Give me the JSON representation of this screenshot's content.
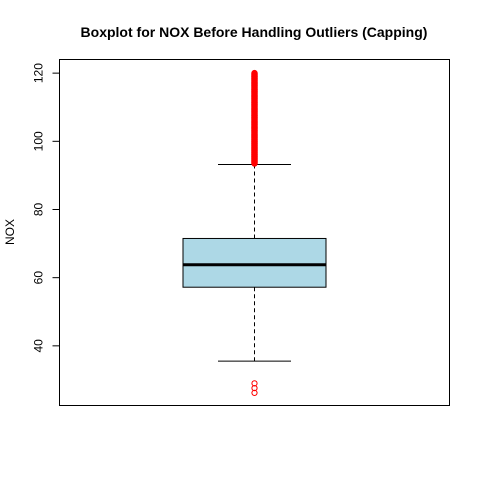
{
  "chart_data": {
    "type": "boxplot",
    "title": "Boxplot for NOX Before Handling Outliers (Capping)",
    "xlabel": "",
    "ylabel": "NOX",
    "ylim": [
      22.5,
      124
    ],
    "yticks": [
      40,
      60,
      80,
      100,
      120
    ],
    "grid": false,
    "legend": "none",
    "box": {
      "whisker_low": 35.5,
      "q1": 57.2,
      "median": 63.8,
      "q3": 71.5,
      "whisker_high": 93.2
    },
    "outliers_high": {
      "from": 93.5,
      "to": 120.0,
      "count": 140
    },
    "outliers_low": [
      26.2,
      27.6,
      29.0
    ],
    "colors": {
      "box_fill": "#add8e6",
      "outlier": "#ff0000",
      "median": "#000000"
    }
  }
}
